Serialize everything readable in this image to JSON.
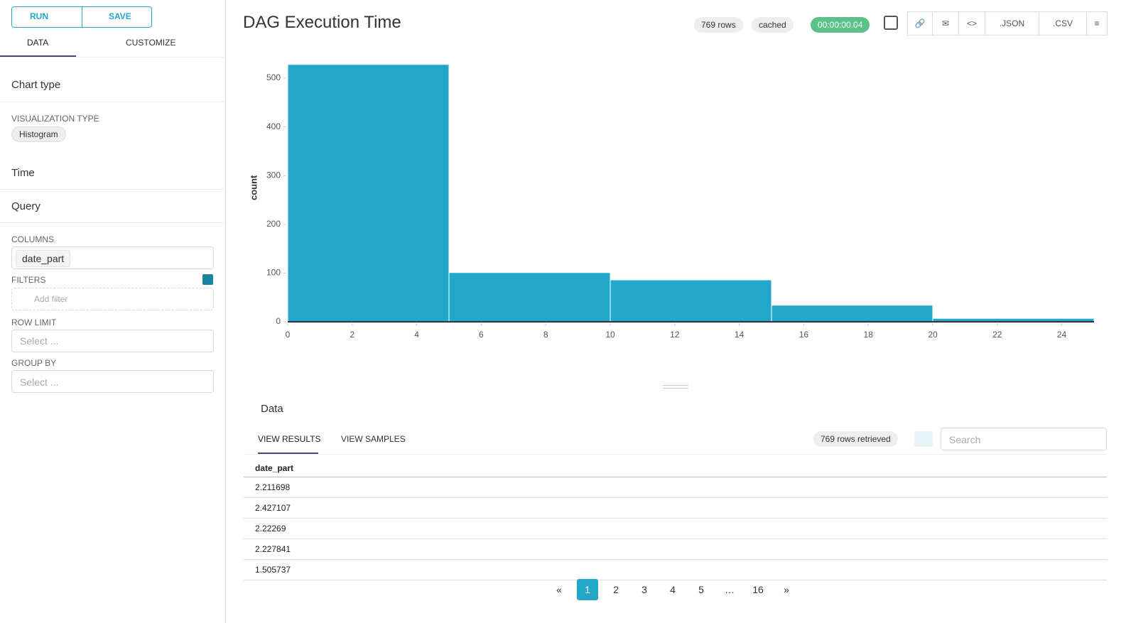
{
  "sidebar": {
    "run": "RUN",
    "save": "SAVE",
    "tabs": [
      "DATA",
      "CUSTOMIZE"
    ],
    "chart_type": {
      "title": "Chart type",
      "label": "VISUALIZATION TYPE",
      "value": "Histogram"
    },
    "time": {
      "title": "Time"
    },
    "query": {
      "title": "Query",
      "columns": {
        "label": "COLUMNS",
        "value": "date_part"
      },
      "filters": {
        "label": "FILTERS",
        "add": "Add filter"
      },
      "row_limit": {
        "label": "ROW LIMIT",
        "placeholder": "Select ..."
      },
      "group_by": {
        "label": "GROUP BY",
        "placeholder": "Select ..."
      }
    }
  },
  "header": {
    "title": "DAG Execution Time",
    "rows": "769 rows",
    "cached": "cached",
    "duration": "00:00:00.04",
    "json": ".JSON",
    "csv": ".CSV"
  },
  "chart_data": {
    "type": "histogram",
    "bins": [
      0,
      5,
      10,
      15,
      20,
      25
    ],
    "values": [
      528,
      101,
      86,
      34,
      7
    ],
    "color": "#20a7c9",
    "xlim": [
      0,
      25
    ],
    "xticks": [
      0,
      2,
      4,
      6,
      8,
      10,
      12,
      14,
      16,
      18,
      20,
      22,
      24
    ],
    "ylim": [
      0,
      550
    ],
    "yticks": [
      0,
      100,
      200,
      300,
      400,
      500
    ],
    "y_label": "count",
    "grid": false
  },
  "data_panel": {
    "title": "Data",
    "tabs": [
      "VIEW RESULTS",
      "VIEW SAMPLES"
    ],
    "retrieved": "769 rows retrieved",
    "search": "Search",
    "table": {
      "header": "date_part",
      "rows": [
        "2.211698",
        "2.427107",
        "2.22269",
        "2.227841",
        "1.505737"
      ]
    },
    "pagination": [
      "«",
      "1",
      "2",
      "3",
      "4",
      "5",
      "…",
      "16",
      "»"
    ]
  }
}
